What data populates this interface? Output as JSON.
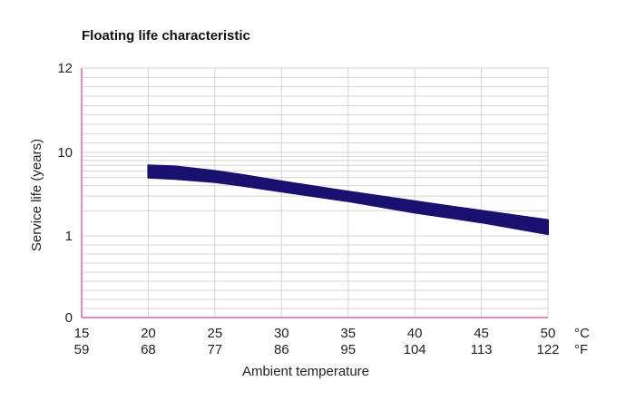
{
  "chart_data": {
    "type": "area",
    "title": "Floating life characteristic",
    "xlabel": "Ambient temperature",
    "ylabel": "Service life (years)",
    "x_unit_c": "°C",
    "x_unit_f": "°F",
    "x_ticks_c": [
      "15",
      "20",
      "25",
      "30",
      "35",
      "40",
      "45",
      "50"
    ],
    "x_ticks_f": [
      "59",
      "68",
      "77",
      "86",
      "95",
      "104",
      "113",
      "122"
    ],
    "y_ticks": [
      "0",
      "1",
      "10",
      "12"
    ],
    "y_scale": "log",
    "xlim": [
      15,
      50
    ],
    "grid": true,
    "colors": {
      "band": "#1a1070",
      "axis": "#e38ac0",
      "grid": "#d4d4d4"
    },
    "series": [
      {
        "x": [
          20,
          22,
          25,
          27,
          30,
          35,
          40,
          45,
          50
        ],
        "upper": [
          7.0,
          6.8,
          6.0,
          5.4,
          4.5,
          3.4,
          2.6,
          2.0,
          1.55
        ],
        "lower": [
          5.0,
          4.8,
          4.4,
          4.0,
          3.4,
          2.6,
          1.9,
          1.45,
          1.05
        ]
      }
    ]
  }
}
